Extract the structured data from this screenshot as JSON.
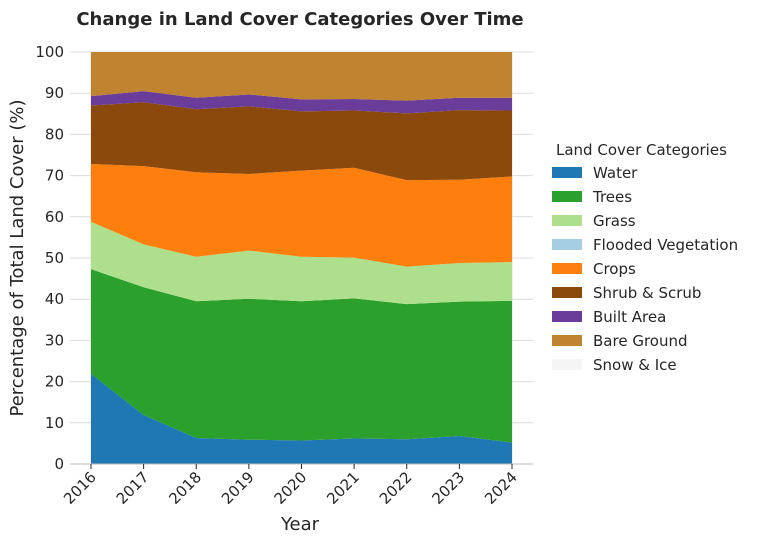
{
  "chart_data": {
    "type": "area",
    "stacked": true,
    "title": "Change in Land Cover Categories Over Time",
    "xlabel": "Year",
    "ylabel": "Percentage of Total Land Cover (%)",
    "ylim": [
      0,
      100
    ],
    "yticks": [
      "0",
      "10",
      "20",
      "30",
      "40",
      "50",
      "60",
      "70",
      "80",
      "90",
      "100"
    ],
    "x": [
      "2016",
      "2017",
      "2018",
      "2019",
      "2020",
      "2021",
      "2022",
      "2023",
      "2024"
    ],
    "grid": true,
    "legend_title": "Land Cover Categories",
    "legend_position": "right",
    "series": [
      {
        "name": "Water",
        "color": "#1f77b4",
        "values": [
          21.9,
          11.9,
          6.3,
          5.9,
          5.7,
          6.2,
          6.0,
          6.8,
          5.2
        ]
      },
      {
        "name": "Trees",
        "color": "#2ca02c",
        "values": [
          25.4,
          31.0,
          33.2,
          34.2,
          33.8,
          34.0,
          32.8,
          32.6,
          34.4
        ]
      },
      {
        "name": "Grass",
        "color": "#aedf8c",
        "values": [
          11.5,
          10.4,
          10.8,
          11.7,
          10.8,
          9.9,
          9.1,
          9.4,
          9.4
        ]
      },
      {
        "name": "Flooded Vegetation",
        "color": "#a6cee3",
        "values": [
          0.0,
          0.0,
          0.0,
          0.0,
          0.0,
          0.0,
          0.0,
          0.0,
          0.0
        ]
      },
      {
        "name": "Crops",
        "color": "#ff7f0e",
        "values": [
          14.0,
          19.0,
          20.5,
          18.6,
          20.9,
          21.8,
          21.0,
          20.2,
          20.8
        ]
      },
      {
        "name": "Shrub & Scrub",
        "color": "#8b4a0c",
        "values": [
          14.2,
          15.5,
          15.3,
          16.4,
          14.4,
          13.9,
          16.2,
          16.9,
          16.0
        ]
      },
      {
        "name": "Built Area",
        "color": "#6a3d9a",
        "values": [
          2.3,
          2.7,
          2.8,
          2.9,
          2.9,
          2.8,
          3.1,
          3.0,
          3.1
        ]
      },
      {
        "name": "Bare Ground",
        "color": "#c0832f",
        "values": [
          10.7,
          9.5,
          11.1,
          10.3,
          11.5,
          11.4,
          11.8,
          11.1,
          11.1
        ]
      },
      {
        "name": "Snow & Ice",
        "color": "#f5f5f5",
        "values": [
          0.0,
          0.0,
          0.0,
          0.0,
          0.0,
          0.0,
          0.0,
          0.0,
          0.0
        ]
      }
    ]
  }
}
